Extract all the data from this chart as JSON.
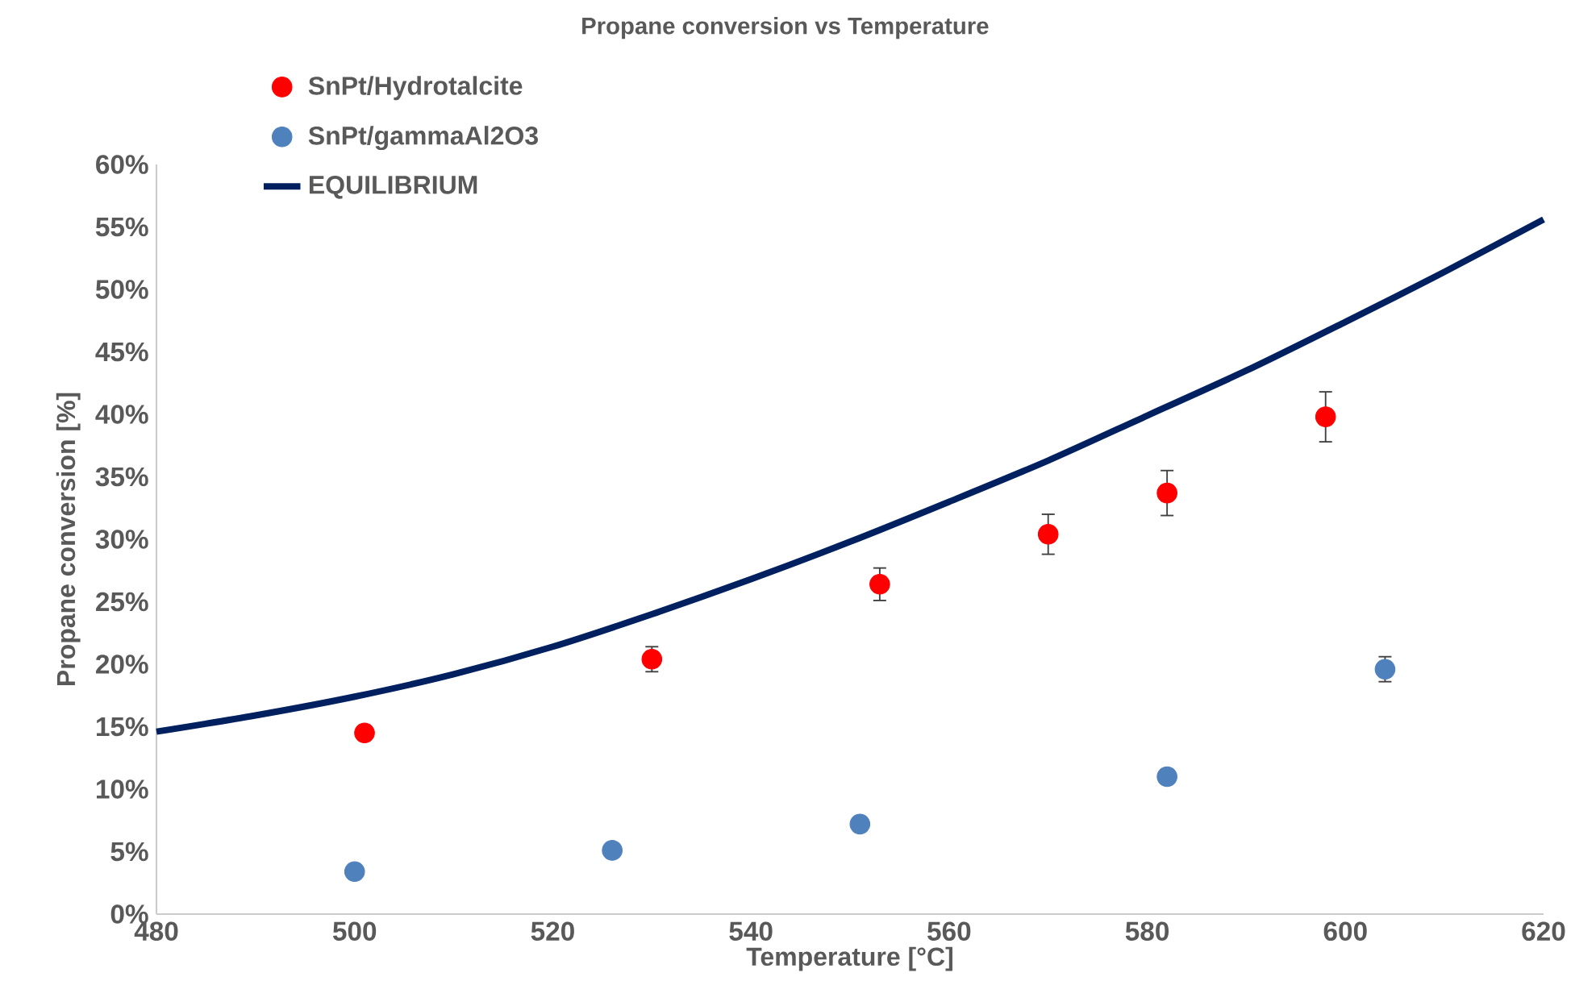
{
  "chart_data": {
    "type": "scatter",
    "title": "Propane conversion vs Temperature",
    "xlabel": "Temperature [°C]",
    "ylabel": "Propane conversion [%]",
    "xlim": [
      480,
      620
    ],
    "xticks": [
      480,
      500,
      520,
      540,
      560,
      580,
      600,
      620
    ],
    "ylim": [
      0,
      60
    ],
    "yticks": [
      {
        "value": 0,
        "label": "0%"
      },
      {
        "value": 5,
        "label": "5%"
      },
      {
        "value": 10,
        "label": "10%"
      },
      {
        "value": 15,
        "label": "15%"
      },
      {
        "value": 20,
        "label": "20%"
      },
      {
        "value": 25,
        "label": "25%"
      },
      {
        "value": 30,
        "label": "30%"
      },
      {
        "value": 35,
        "label": "35%"
      },
      {
        "value": 40,
        "label": "40%"
      },
      {
        "value": 45,
        "label": "45%"
      },
      {
        "value": 50,
        "label": "50%"
      },
      {
        "value": 55,
        "label": "55%"
      },
      {
        "value": 60,
        "label": "60%"
      }
    ],
    "grid": false,
    "legend": "top left",
    "marker": "circle",
    "series": [
      {
        "name": "SnPt/Hydrotalcite",
        "color": "#ff0000",
        "x": [
          501,
          530,
          553,
          570,
          582,
          598
        ],
        "values": [
          14.5,
          20.4,
          26.4,
          30.4,
          33.7,
          39.8
        ],
        "errors": [
          null,
          1.0,
          1.3,
          1.6,
          1.8,
          2.0
        ]
      },
      {
        "name": "SnPt/gammaAl2O3",
        "color": "#4f81bd",
        "x": [
          500,
          526,
          551,
          582,
          604
        ],
        "values": [
          3.4,
          5.1,
          7.2,
          11.0,
          19.6
        ],
        "errors": [
          null,
          null,
          null,
          null,
          1.0
        ]
      },
      {
        "name": "EQUILIBRIUM",
        "type": "line",
        "color": "#002060",
        "marker": "none",
        "line_style": "solid",
        "x": [
          480,
          490,
          500,
          510,
          520,
          530,
          540,
          550,
          560,
          570,
          580,
          590,
          600,
          610,
          620
        ],
        "values": [
          14.6,
          15.9,
          17.4,
          19.2,
          21.4,
          24.0,
          26.8,
          29.8,
          33.0,
          36.3,
          39.9,
          43.5,
          47.4,
          51.4,
          55.6
        ]
      }
    ]
  }
}
